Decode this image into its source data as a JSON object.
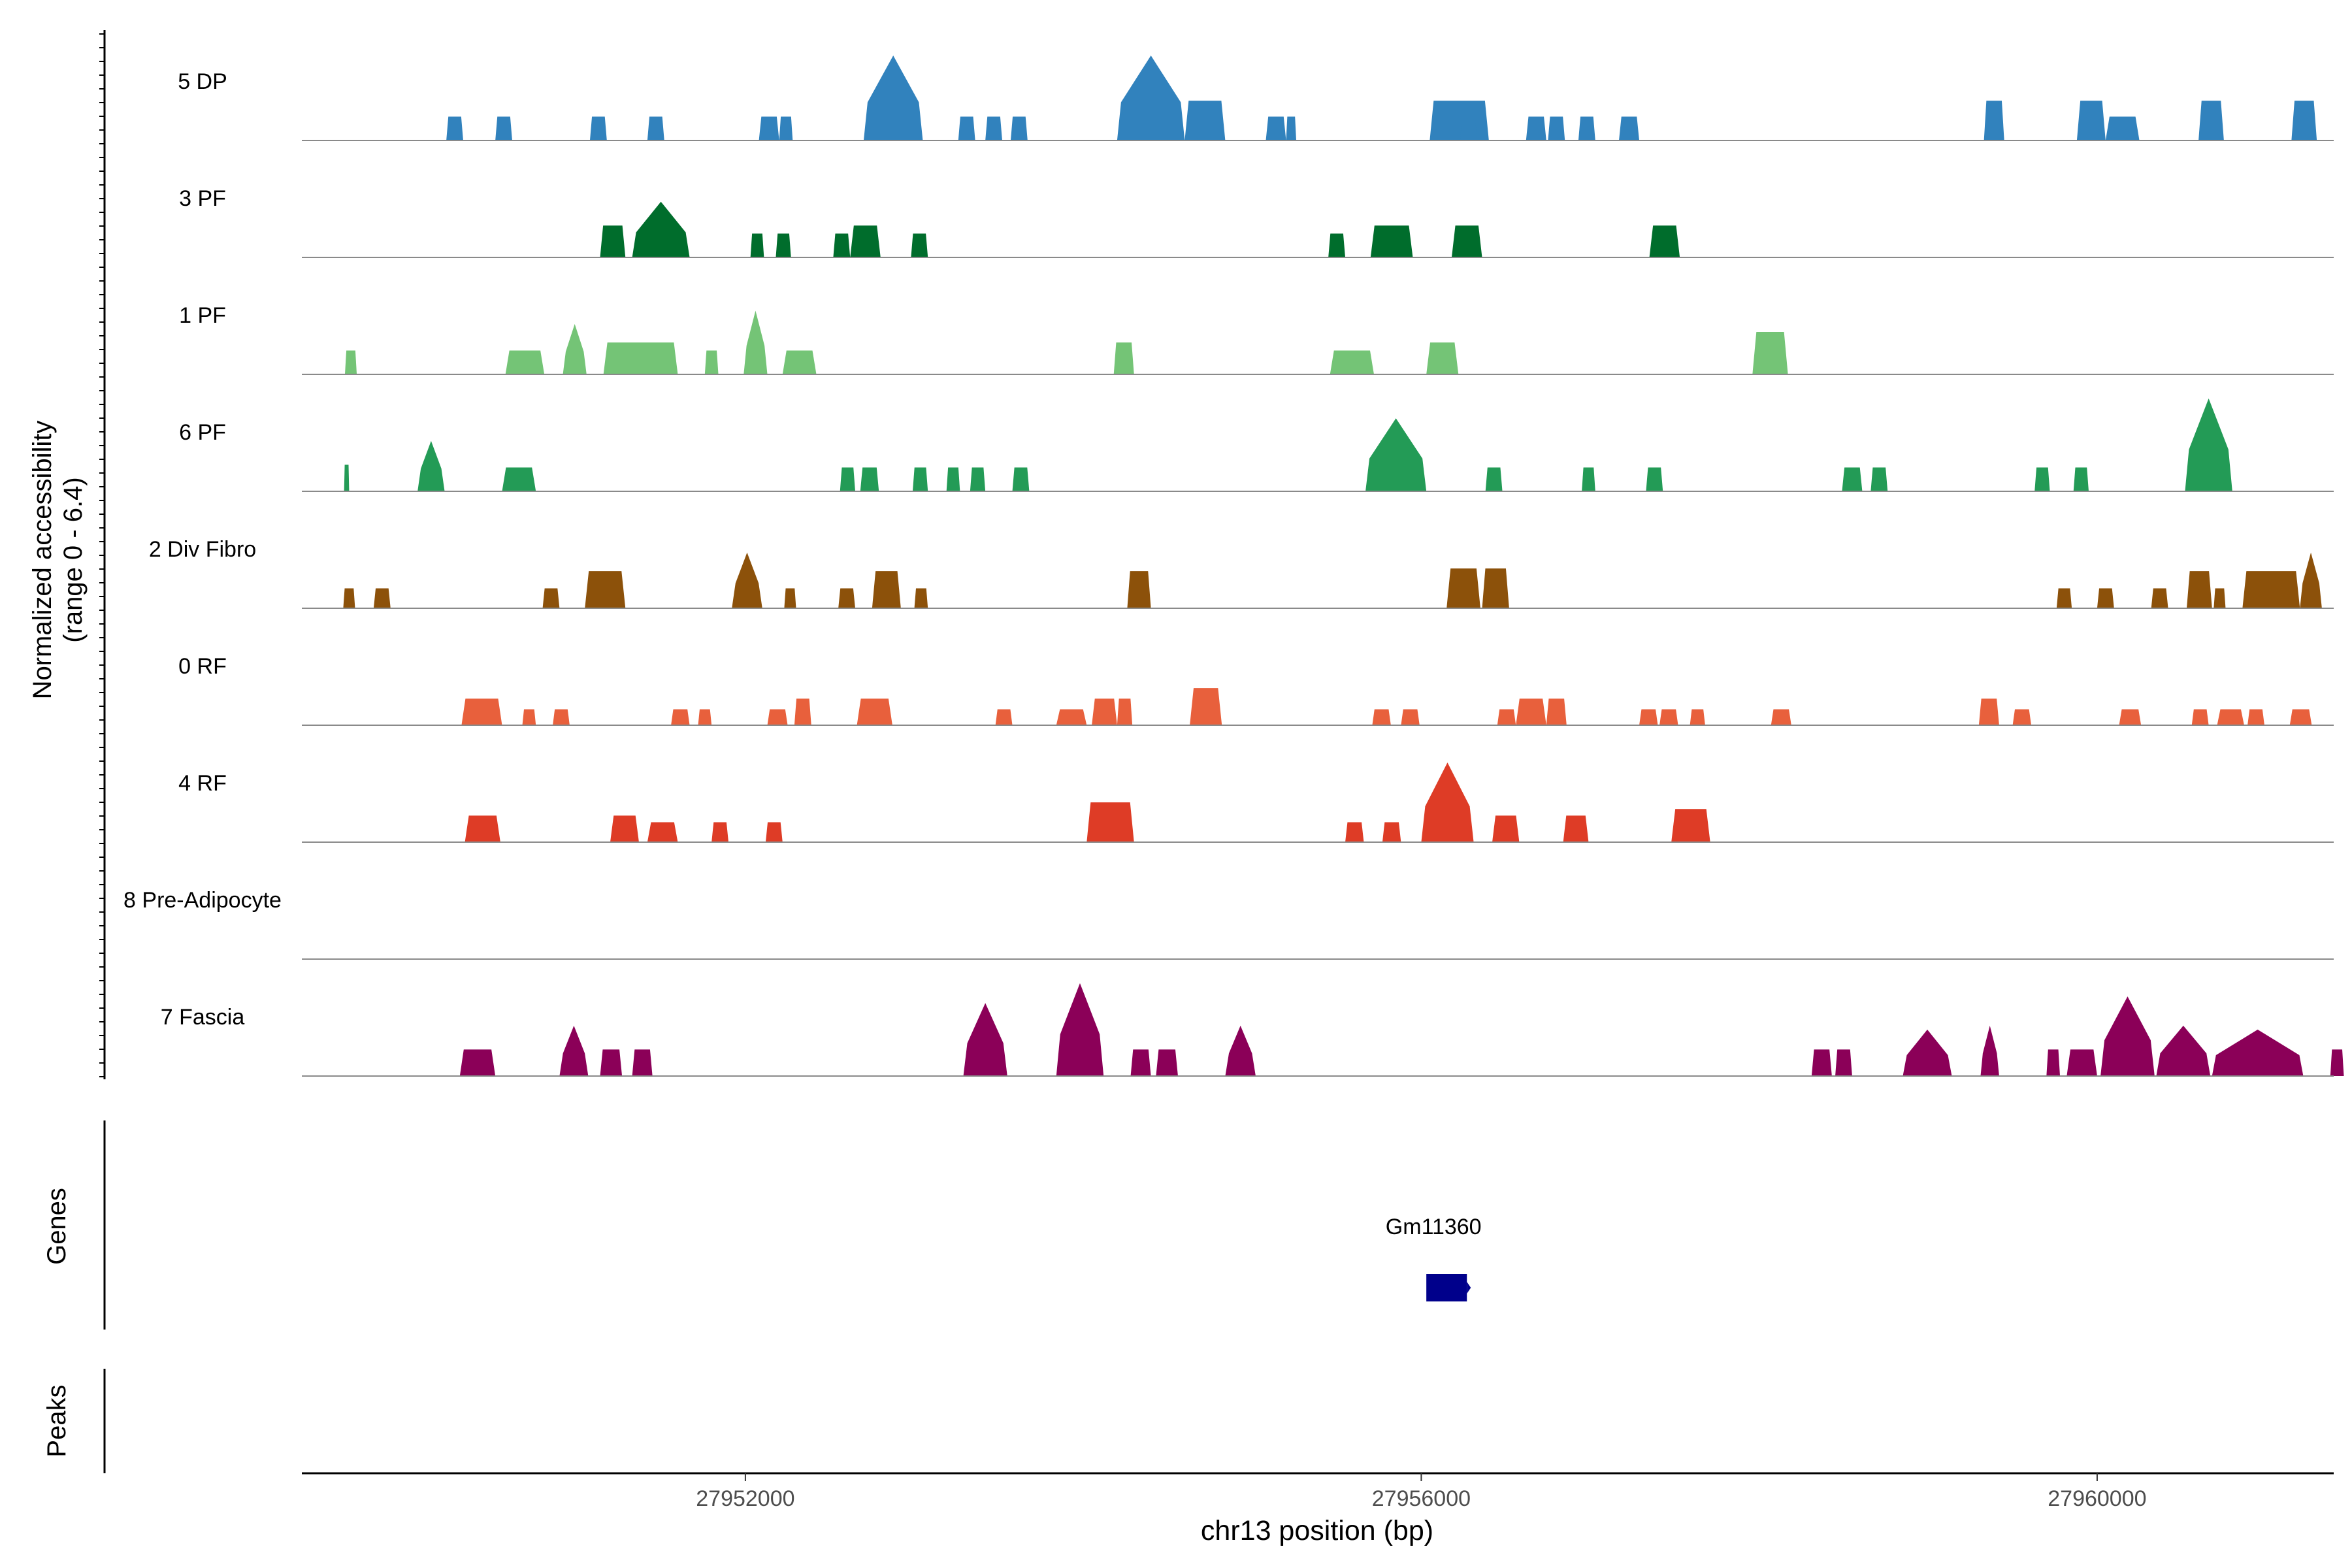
{
  "chart_data": {
    "type": "area",
    "title": "",
    "region": "chr13",
    "xlabel": "chr13 position (bp)",
    "xlim": [
      27949375,
      27961400
    ],
    "x_ticks": [
      27952000,
      27956000,
      27960000
    ],
    "x_tick_labels": [
      "27952000",
      "27956000",
      "27960000"
    ],
    "ylabel_line1": "Normalized accessibility",
    "ylabel_line2": "(range 0 - 6.4)",
    "ylim": [
      0,
      6.4
    ],
    "genes_label": "Genes",
    "peaks_label": "Peaks",
    "series": [
      {
        "name": "5 DP",
        "color": "#3182bd",
        "peaks": [
          [
            27950230,
            27950330,
            1.8
          ],
          [
            27950520,
            27950620,
            1.8
          ],
          [
            27951080,
            27951180,
            1.8
          ],
          [
            27951420,
            27951520,
            1.8
          ],
          [
            27952080,
            27952200,
            1.8
          ],
          [
            27952200,
            27952280,
            1.8
          ],
          [
            27952700,
            27953050,
            6.4
          ],
          [
            27953260,
            27953360,
            1.8
          ],
          [
            27953420,
            27953520,
            1.8
          ],
          [
            27953570,
            27953670,
            1.8
          ],
          [
            27954200,
            27954600,
            6.4
          ],
          [
            27954600,
            27954840,
            3.0
          ],
          [
            27955080,
            27955200,
            1.8
          ],
          [
            27955200,
            27955260,
            1.8
          ],
          [
            27956050,
            27956400,
            3.0
          ],
          [
            27956230,
            27956330,
            1.8
          ],
          [
            27956620,
            27956740,
            1.8
          ],
          [
            27956750,
            27956850,
            1.8
          ],
          [
            27956930,
            27957030,
            1.8
          ],
          [
            27957170,
            27957290,
            1.8
          ],
          [
            27959330,
            27959450,
            3.0
          ],
          [
            27959880,
            27960050,
            3.0
          ],
          [
            27960050,
            27960250,
            1.8
          ],
          [
            27960600,
            27960750,
            3.0
          ],
          [
            27961150,
            27961300,
            3.0
          ]
        ]
      },
      {
        "name": "3 PF",
        "color": "#006d2c",
        "peaks": [
          [
            27951140,
            27951290,
            2.4
          ],
          [
            27951330,
            27951670,
            4.2
          ],
          [
            27952030,
            27952110,
            1.8
          ],
          [
            27952180,
            27952270,
            1.8
          ],
          [
            27952520,
            27952620,
            1.8
          ],
          [
            27952620,
            27952800,
            2.4
          ],
          [
            27952980,
            27953080,
            1.8
          ],
          [
            27955450,
            27955550,
            1.8
          ],
          [
            27955700,
            27955950,
            2.4
          ],
          [
            27956180,
            27956360,
            2.4
          ],
          [
            27957350,
            27957530,
            2.4
          ]
        ]
      },
      {
        "name": "1 PF",
        "color": "#74c476",
        "peaks": [
          [
            27949630,
            27949700,
            1.8
          ],
          [
            27950580,
            27950810,
            1.8
          ],
          [
            27950920,
            27951060,
            3.8
          ],
          [
            27951160,
            27951600,
            2.4
          ],
          [
            27951760,
            27951840,
            1.8
          ],
          [
            27951990,
            27952130,
            4.8
          ],
          [
            27952220,
            27952420,
            1.8
          ],
          [
            27954180,
            27954300,
            2.4
          ],
          [
            27955460,
            27955720,
            1.8
          ],
          [
            27956030,
            27956220,
            2.4
          ],
          [
            27957960,
            27958170,
            3.2
          ]
        ]
      },
      {
        "name": "6 PF",
        "color": "#239b56",
        "peaks": [
          [
            27949625,
            27949655,
            2.0
          ],
          [
            27950060,
            27950220,
            3.8
          ],
          [
            27950560,
            27950760,
            1.8
          ],
          [
            27952560,
            27952650,
            1.8
          ],
          [
            27952680,
            27952790,
            1.8
          ],
          [
            27952990,
            27953080,
            1.8
          ],
          [
            27953190,
            27953270,
            1.8
          ],
          [
            27953330,
            27953420,
            1.8
          ],
          [
            27953580,
            27953680,
            1.8
          ],
          [
            27955670,
            27956030,
            5.5
          ],
          [
            27956380,
            27956480,
            1.8
          ],
          [
            27956950,
            27957030,
            1.8
          ],
          [
            27957330,
            27957430,
            1.8
          ],
          [
            27958490,
            27958610,
            1.8
          ],
          [
            27958660,
            27958760,
            1.8
          ],
          [
            27959630,
            27959720,
            1.8
          ],
          [
            27959860,
            27959950,
            1.8
          ],
          [
            27960520,
            27960800,
            7.0
          ]
        ]
      },
      {
        "name": "2 Div Fibro",
        "color": "#8c510a",
        "peaks": [
          [
            27949620,
            27949690,
            1.5
          ],
          [
            27949800,
            27949900,
            1.5
          ],
          [
            27950800,
            27950900,
            1.5
          ],
          [
            27951050,
            27951290,
            2.8
          ],
          [
            27951920,
            27952100,
            4.2
          ],
          [
            27952230,
            27952300,
            1.5
          ],
          [
            27952550,
            27952650,
            1.5
          ],
          [
            27952750,
            27952920,
            2.8
          ],
          [
            27953000,
            27953080,
            1.5
          ],
          [
            27954260,
            27954400,
            2.8
          ],
          [
            27956150,
            27956350,
            3.0
          ],
          [
            27956360,
            27956520,
            3.0
          ],
          [
            27959760,
            27959850,
            1.5
          ],
          [
            27960000,
            27960100,
            1.5
          ],
          [
            27960320,
            27960420,
            1.5
          ],
          [
            27960530,
            27960680,
            2.8
          ],
          [
            27960690,
            27960760,
            1.5
          ],
          [
            27960860,
            27961200,
            2.8
          ],
          [
            27961200,
            27961330,
            4.2
          ]
        ]
      },
      {
        "name": "0 RF",
        "color": "#e8603c",
        "peaks": [
          [
            27950320,
            27950560,
            2.0
          ],
          [
            27950680,
            27950760,
            1.2
          ],
          [
            27950860,
            27950960,
            1.2
          ],
          [
            27951560,
            27951670,
            1.2
          ],
          [
            27951720,
            27951800,
            1.2
          ],
          [
            27952130,
            27952250,
            1.2
          ],
          [
            27952290,
            27952390,
            2.0
          ],
          [
            27952660,
            27952870,
            2.0
          ],
          [
            27953480,
            27953580,
            1.2
          ],
          [
            27953840,
            27954020,
            1.2
          ],
          [
            27954050,
            27954200,
            2.0
          ],
          [
            27954200,
            27954290,
            2.0
          ],
          [
            27954630,
            27954820,
            2.8
          ],
          [
            27955710,
            27955820,
            1.2
          ],
          [
            27955880,
            27955990,
            1.2
          ],
          [
            27956450,
            27956560,
            1.2
          ],
          [
            27956560,
            27956740,
            2.0
          ],
          [
            27956740,
            27956860,
            2.0
          ],
          [
            27957290,
            27957400,
            1.2
          ],
          [
            27957410,
            27957520,
            1.2
          ],
          [
            27957590,
            27957680,
            1.2
          ],
          [
            27958070,
            27958190,
            1.2
          ],
          [
            27959300,
            27959420,
            2.0
          ],
          [
            27959500,
            27959610,
            1.2
          ],
          [
            27960130,
            27960260,
            1.2
          ],
          [
            27960560,
            27960660,
            1.2
          ],
          [
            27960710,
            27960870,
            1.2
          ],
          [
            27960890,
            27960990,
            1.2
          ],
          [
            27961140,
            27961270,
            1.2
          ]
        ]
      },
      {
        "name": "4 RF",
        "color": "#de3c26",
        "peaks": [
          [
            27950340,
            27950550,
            2.0
          ],
          [
            27951200,
            27951370,
            2.0
          ],
          [
            27951420,
            27951600,
            1.5
          ],
          [
            27951800,
            27951900,
            1.5
          ],
          [
            27952120,
            27952220,
            1.5
          ],
          [
            27954020,
            27954300,
            3.0
          ],
          [
            27955550,
            27955660,
            1.5
          ],
          [
            27955770,
            27955880,
            1.5
          ],
          [
            27956000,
            27956310,
            6.0
          ],
          [
            27956420,
            27956580,
            2.0
          ],
          [
            27956840,
            27956990,
            2.0
          ],
          [
            27957480,
            27957710,
            2.5
          ]
        ]
      },
      {
        "name": "8 Pre-Adipocyte",
        "color": "#7a0f5a",
        "peaks": []
      },
      {
        "name": "7 Fascia",
        "color": "#8b0058",
        "peaks": [
          [
            27950310,
            27950520,
            2.0
          ],
          [
            27950900,
            27951070,
            3.8
          ],
          [
            27951140,
            27951270,
            2.0
          ],
          [
            27951330,
            27951450,
            2.0
          ],
          [
            27953290,
            27953550,
            5.5
          ],
          [
            27953840,
            27954120,
            7.0
          ],
          [
            27954280,
            27954400,
            2.0
          ],
          [
            27954430,
            27954560,
            2.0
          ],
          [
            27954840,
            27955020,
            3.8
          ],
          [
            27958310,
            27958430,
            2.0
          ],
          [
            27958450,
            27958550,
            2.0
          ],
          [
            27958850,
            27959140,
            3.5
          ],
          [
            27959310,
            27959420,
            3.8
          ],
          [
            27959700,
            27959780,
            2.0
          ],
          [
            27959820,
            27960000,
            2.0
          ],
          [
            27960020,
            27960340,
            6.0
          ],
          [
            27960350,
            27960670,
            3.8
          ],
          [
            27960680,
            27961220,
            3.5
          ],
          [
            27961380,
            27961460,
            2.0
          ]
        ]
      }
    ],
    "genes": [
      {
        "name": "Gm11360",
        "start": 27956030,
        "end": 27956270,
        "strand": "+",
        "color": "#00008b"
      }
    ],
    "peaks": []
  }
}
